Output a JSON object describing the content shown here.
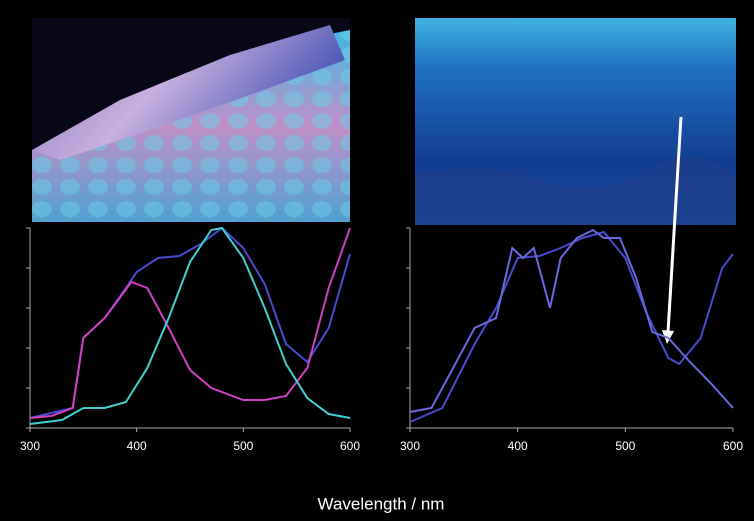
{
  "chart_data": [
    {
      "type": "line",
      "xlim": [
        300,
        600
      ],
      "ylim": [
        0,
        1
      ],
      "xticks": [
        300,
        400,
        500,
        600
      ],
      "yticks": [
        0,
        0.2,
        0.4,
        0.6,
        0.8,
        1
      ],
      "series": [
        {
          "color": "#4a4ad0",
          "x": [
            300,
            340,
            350,
            370,
            390,
            400,
            420,
            440,
            460,
            480,
            500,
            520,
            540,
            560,
            580,
            600
          ],
          "values": [
            0.05,
            0.1,
            0.45,
            0.55,
            0.7,
            0.78,
            0.85,
            0.86,
            0.92,
            1.0,
            0.9,
            0.72,
            0.42,
            0.33,
            0.5,
            0.87
          ]
        },
        {
          "color": "#d040c0",
          "x": [
            300,
            320,
            340,
            350,
            370,
            380,
            395,
            410,
            430,
            450,
            470,
            500,
            520,
            540,
            560,
            580,
            600
          ],
          "values": [
            0.05,
            0.06,
            0.1,
            0.45,
            0.55,
            0.62,
            0.73,
            0.7,
            0.5,
            0.29,
            0.2,
            0.14,
            0.14,
            0.16,
            0.3,
            0.7,
            1.0
          ]
        },
        {
          "color": "#40d0d0",
          "x": [
            300,
            330,
            350,
            370,
            390,
            410,
            430,
            450,
            470,
            480,
            500,
            520,
            540,
            560,
            580,
            600
          ],
          "values": [
            0.02,
            0.04,
            0.1,
            0.1,
            0.13,
            0.3,
            0.55,
            0.83,
            0.99,
            1.0,
            0.85,
            0.6,
            0.32,
            0.15,
            0.07,
            0.05
          ]
        }
      ]
    },
    {
      "type": "line",
      "xlim": [
        300,
        600
      ],
      "ylim": [
        0,
        1
      ],
      "xticks": [
        300,
        400,
        500,
        600
      ],
      "yticks": [
        0,
        0.2,
        0.4,
        0.6,
        0.8,
        1
      ],
      "series": [
        {
          "color": "#4a4ad0",
          "x": [
            300,
            330,
            360,
            380,
            400,
            420,
            440,
            460,
            480,
            500,
            520,
            540,
            550,
            570,
            590,
            600
          ],
          "values": [
            0.03,
            0.1,
            0.42,
            0.6,
            0.85,
            0.86,
            0.9,
            0.95,
            0.98,
            0.85,
            0.57,
            0.35,
            0.32,
            0.45,
            0.8,
            0.87
          ]
        },
        {
          "color": "#6a6ae0",
          "x": [
            300,
            320,
            340,
            360,
            380,
            395,
            405,
            415,
            425,
            430,
            440,
            455,
            470,
            480,
            495,
            510,
            525,
            540,
            560,
            580,
            600
          ],
          "values": [
            0.08,
            0.1,
            0.3,
            0.5,
            0.55,
            0.9,
            0.85,
            0.9,
            0.7,
            0.6,
            0.85,
            0.95,
            0.99,
            0.95,
            0.95,
            0.75,
            0.48,
            0.45,
            0.33,
            0.22,
            0.1
          ]
        }
      ]
    }
  ],
  "figure": {
    "xlabel": "Wavelength / nm"
  }
}
